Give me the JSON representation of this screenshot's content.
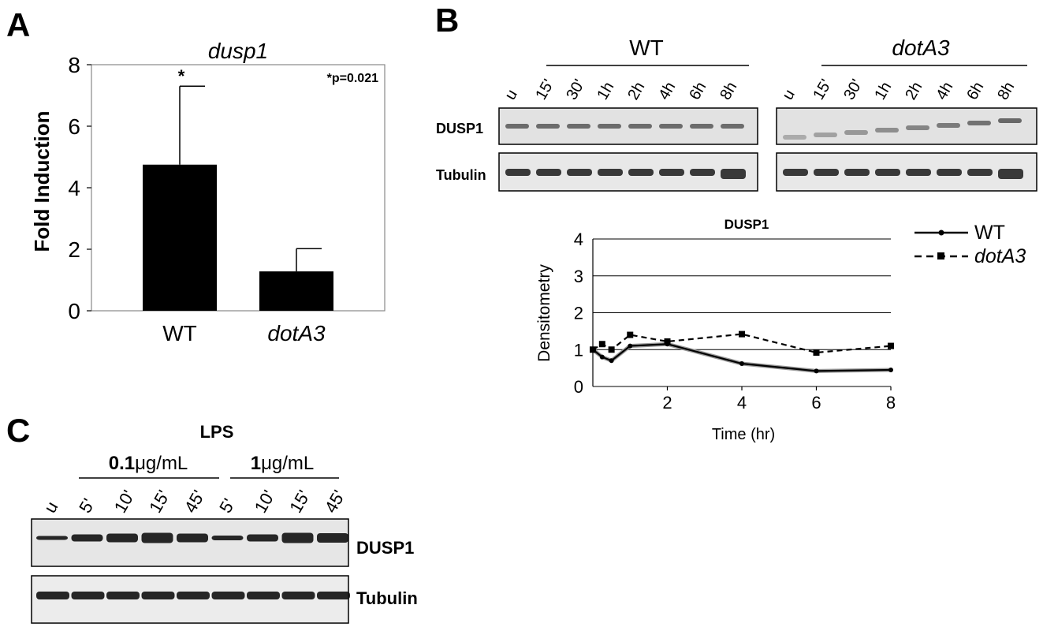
{
  "panel_A": {
    "letter": "A",
    "annotation": "*p=0.021",
    "star": "*",
    "chart_data": {
      "type": "bar",
      "title": "dusp1",
      "ylabel": "Fold Induction",
      "categories": [
        "WT",
        "dotA3"
      ],
      "values": [
        4.75,
        1.28
      ],
      "error_upper": [
        7.3,
        2.02
      ],
      "ylim": [
        0,
        8
      ],
      "yticks": [
        "0",
        "2",
        "4",
        "6",
        "8"
      ],
      "bar_color": "#000000"
    }
  },
  "panel_B": {
    "letter": "B",
    "groups": [
      {
        "label": "WT",
        "lanes": [
          "u",
          "15'",
          "30'",
          "1h",
          "2h",
          "4h",
          "6h",
          "8h"
        ]
      },
      {
        "label": "dotA3",
        "lanes": [
          "u",
          "15'",
          "30'",
          "1h",
          "2h",
          "4h",
          "6h",
          "8h"
        ]
      }
    ],
    "blot_rows": [
      "DUSP1",
      "Tubulin"
    ],
    "chart_data": {
      "type": "line",
      "title": "DUSP1",
      "xlabel": "Time (hr)",
      "ylabel": "Densitometry",
      "xlim": [
        0,
        8
      ],
      "ylim": [
        0,
        4
      ],
      "xticks": [
        "2",
        "4",
        "6",
        "8"
      ],
      "yticks": [
        "0",
        "1",
        "2",
        "3",
        "4"
      ],
      "grid": "horizontal",
      "legend_position": "right",
      "series": [
        {
          "name": "WT",
          "style": "solid",
          "marker": "circle",
          "x": [
            0,
            0.25,
            0.5,
            1,
            2,
            4,
            6,
            8
          ],
          "y": [
            1.0,
            0.8,
            0.7,
            1.1,
            1.15,
            0.62,
            0.42,
            0.45
          ]
        },
        {
          "name": "dotA3",
          "style": "dashed",
          "marker": "square",
          "x": [
            0,
            0.25,
            0.5,
            1,
            2,
            4,
            6,
            8
          ],
          "y": [
            1.0,
            1.15,
            1.0,
            1.4,
            1.22,
            1.42,
            0.92,
            1.1
          ]
        }
      ]
    }
  },
  "panel_C": {
    "letter": "C",
    "title": "LPS",
    "groups": [
      {
        "label_bold": "0.1",
        "label_rest": "μg/mL",
        "lanes": [
          "5'",
          "10'",
          "15'",
          "45'"
        ]
      },
      {
        "label_bold": "1",
        "label_rest": "μg/mL",
        "lanes": [
          "5'",
          "10'",
          "15'",
          "45'"
        ]
      }
    ],
    "untreated_lane": "u",
    "blot_rows": [
      "DUSP1",
      "Tubulin"
    ]
  }
}
